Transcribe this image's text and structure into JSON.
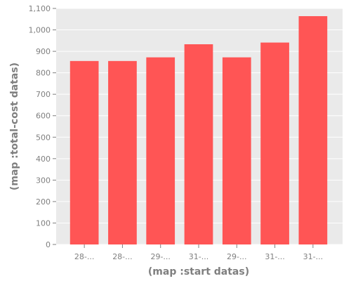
{
  "chart_data": {
    "type": "bar",
    "categories": [
      "28-...",
      "28-...",
      "29-...",
      "31-...",
      "29-...",
      "31-...",
      "31-..."
    ],
    "values": [
      855,
      855,
      872,
      933,
      872,
      941,
      1064
    ],
    "xlabel": "(map :start datas)",
    "ylabel": "(map :total-cost datas)",
    "ylim": [
      0,
      1100
    ],
    "yticks": [
      0,
      100,
      200,
      300,
      400,
      500,
      600,
      700,
      800,
      900,
      1000,
      1100
    ],
    "ytick_labels": [
      "0",
      "100",
      "200",
      "300",
      "400",
      "500",
      "600",
      "700",
      "800",
      "900",
      "1,000",
      "1,100"
    ],
    "grid": true,
    "colors": {
      "bar": "#ff5555",
      "panel": "#eaeaea",
      "grid": "#ffffff",
      "text": "#7f7f7f"
    }
  }
}
